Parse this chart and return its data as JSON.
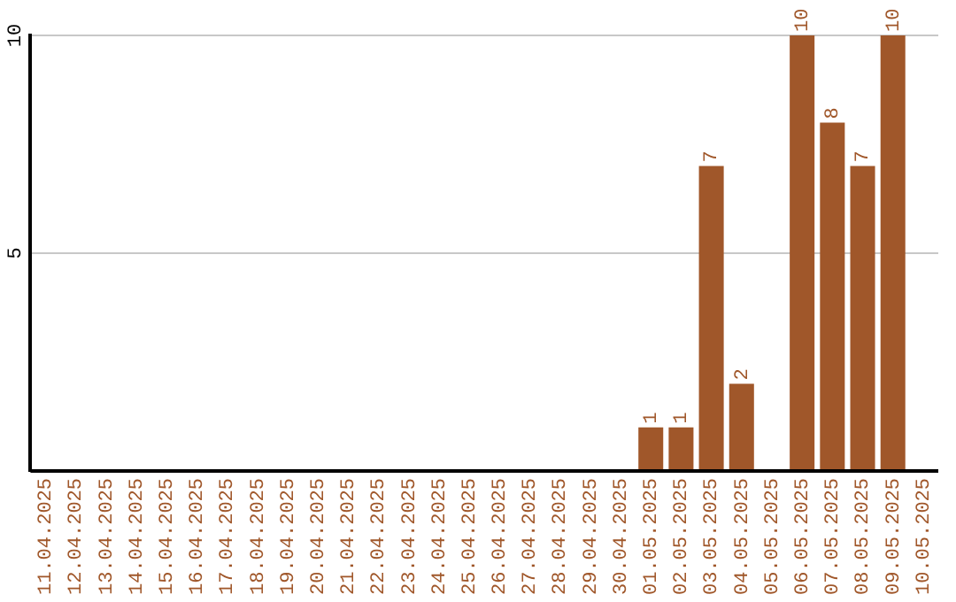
{
  "chart_data": {
    "type": "bar",
    "categories": [
      "11.04.2025",
      "12.04.2025",
      "13.04.2025",
      "14.04.2025",
      "15.04.2025",
      "16.04.2025",
      "17.04.2025",
      "18.04.2025",
      "19.04.2025",
      "20.04.2025",
      "21.04.2025",
      "22.04.2025",
      "23.04.2025",
      "24.04.2025",
      "25.04.2025",
      "26.04.2025",
      "27.04.2025",
      "28.04.2025",
      "29.04.2025",
      "30.04.2025",
      "01.05.2025",
      "02.05.2025",
      "03.05.2025",
      "04.05.2025",
      "05.05.2025",
      "06.05.2025",
      "07.05.2025",
      "08.05.2025",
      "09.05.2025",
      "10.05.2025"
    ],
    "values": [
      0,
      0,
      0,
      0,
      0,
      0,
      0,
      0,
      0,
      0,
      0,
      0,
      0,
      0,
      0,
      0,
      0,
      0,
      0,
      0,
      1,
      1,
      7,
      2,
      0,
      10,
      8,
      7,
      10,
      0
    ],
    "value_labels": [
      null,
      null,
      null,
      null,
      null,
      null,
      null,
      null,
      null,
      null,
      null,
      null,
      null,
      null,
      null,
      null,
      null,
      null,
      null,
      null,
      "1",
      "1",
      "7",
      "2",
      null,
      "10",
      "8",
      "7",
      "10",
      null
    ],
    "color": "#a0572a",
    "ylim": [
      0,
      10
    ],
    "yticks": [
      5,
      10
    ],
    "grid": "y",
    "legend": false
  }
}
